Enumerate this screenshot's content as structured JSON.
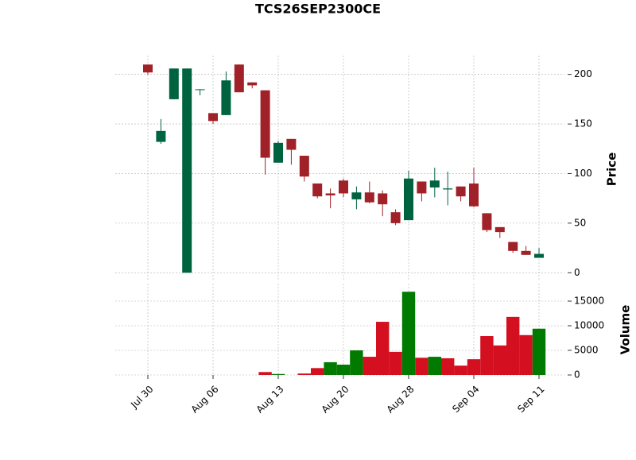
{
  "chart_data": {
    "type": "candlestick",
    "title": "TCS26SEP2300CE",
    "categories": [
      "Jul 30",
      null,
      null,
      null,
      null,
      "Aug 06",
      null,
      null,
      null,
      null,
      "Aug 13",
      null,
      null,
      null,
      null,
      "Aug 20",
      null,
      null,
      null,
      null,
      "Aug 28",
      null,
      null,
      null,
      null,
      "Sep 04",
      null,
      null,
      null,
      null,
      "Sep 11"
    ],
    "open": [
      210,
      132,
      175,
      0,
      185,
      161,
      159,
      210,
      192,
      184,
      111,
      135,
      118,
      90,
      80,
      93,
      74,
      81,
      80,
      61,
      53,
      92,
      86,
      84,
      87,
      90,
      60,
      46,
      31,
      22,
      15
    ],
    "high": [
      210,
      155,
      206,
      206,
      185,
      161,
      203,
      210,
      192,
      184,
      133,
      135,
      118,
      90,
      85,
      95,
      87,
      92,
      83,
      64,
      103,
      92,
      106,
      102,
      87,
      106,
      60,
      46,
      31,
      27,
      25
    ],
    "low": [
      200,
      130,
      175,
      0,
      179,
      150,
      159,
      182,
      186,
      99,
      111,
      109,
      92,
      75,
      65,
      76,
      64,
      70,
      57,
      48,
      53,
      72,
      76,
      68,
      72,
      66,
      41,
      35,
      20,
      18,
      15
    ],
    "close": [
      202,
      143,
      206,
      206,
      185,
      153,
      194,
      182,
      189,
      116,
      131,
      124,
      97,
      77,
      78,
      80,
      81,
      71,
      69,
      50,
      95,
      80,
      93,
      85,
      77,
      67,
      43,
      41,
      22,
      18,
      19
    ],
    "volume": [
      0,
      0,
      0,
      0,
      0,
      0,
      0,
      0,
      0,
      600,
      200,
      0,
      300,
      1400,
      2600,
      2100,
      5000,
      3700,
      10800,
      4700,
      16900,
      3500,
      3700,
      3400,
      1900,
      3200,
      7900,
      6000,
      11800,
      8100,
      9400
    ],
    "volume_colors": [
      "#d40f1f",
      "#d40f1f",
      "#007a00",
      "#007a00",
      "#007a00",
      "#d40f1f",
      "#007a00",
      "#d40f1f",
      "#d40f1f",
      "#d40f1f",
      "#007a00",
      "#d40f1f",
      "#d40f1f",
      "#d40f1f",
      "#007a00",
      "#007a00",
      "#007a00",
      "#d40f1f",
      "#d40f1f",
      "#d40f1f",
      "#007a00",
      "#d40f1f",
      "#007a00",
      "#d40f1f",
      "#d40f1f",
      "#d40f1f",
      "#d40f1f",
      "#d40f1f",
      "#d40f1f",
      "#d40f1f",
      "#007a00"
    ],
    "up_color": "#006340",
    "down_color": "#a02128",
    "ylabel": "Price",
    "ylim": [
      -7,
      219
    ],
    "yticks": [
      0,
      50,
      100,
      150,
      200
    ],
    "volume_label": "Volume",
    "volume_ylim": [
      0,
      18550
    ],
    "volume_yticks": [
      0,
      5000,
      10000,
      15000
    ],
    "grid": true
  }
}
